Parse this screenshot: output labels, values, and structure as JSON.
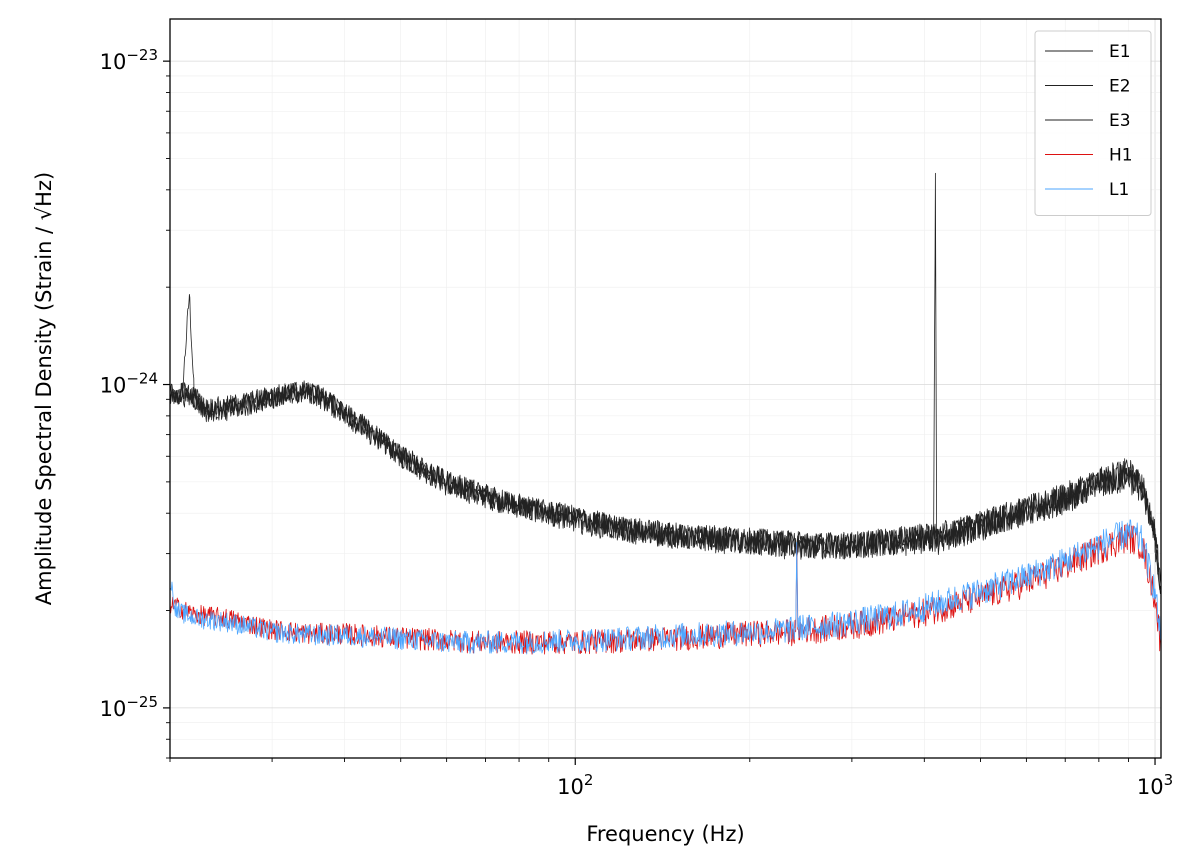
{
  "chart_data": {
    "type": "line",
    "title": "",
    "xlabel": "Frequency (Hz)",
    "ylabel": "Amplitude Spectral Density (Strain / √Hz)",
    "xscale": "log",
    "yscale": "log",
    "xlim": [
      20,
      1024
    ],
    "ylim": [
      7e-26,
      1.35e-23
    ],
    "x_ticks": [
      {
        "value": 100,
        "base": "10",
        "exp": "2"
      },
      {
        "value": 1000,
        "base": "10",
        "exp": "3"
      }
    ],
    "y_ticks": [
      {
        "value": 1e-25,
        "base": "10",
        "exp": "−25"
      },
      {
        "value": 1e-24,
        "base": "10",
        "exp": "−24"
      },
      {
        "value": 1e-23,
        "base": "10",
        "exp": "−23"
      }
    ],
    "grid": true,
    "legend_position": "top-right",
    "series": [
      {
        "name": "E1",
        "color": "#222222",
        "points": [
          [
            20,
            9.3e-25
          ],
          [
            20.6,
            9e-25
          ],
          [
            21,
            9.4e-25
          ],
          [
            21.6,
            1.9e-24
          ],
          [
            22,
            9.5e-25
          ],
          [
            23,
            8.4e-25
          ],
          [
            25,
            8.3e-25
          ],
          [
            28,
            8.8e-25
          ],
          [
            31,
            9.2e-25
          ],
          [
            34,
            9.5e-25
          ],
          [
            36,
            9.3e-25
          ],
          [
            40,
            8.3e-25
          ],
          [
            45,
            7e-25
          ],
          [
            50,
            6e-25
          ],
          [
            60,
            4.9e-25
          ],
          [
            70,
            4.5e-25
          ],
          [
            80,
            4.2e-25
          ],
          [
            100,
            3.85e-25
          ],
          [
            120,
            3.6e-25
          ],
          [
            150,
            3.45e-25
          ],
          [
            180,
            3.35e-25
          ],
          [
            220,
            3.25e-25
          ],
          [
            260,
            3.2e-25
          ],
          [
            300,
            3.2e-25
          ],
          [
            360,
            3.3e-25
          ],
          [
            410,
            3.4e-25
          ],
          [
            415,
            3.45e-25
          ],
          [
            418,
            4.5e-24
          ],
          [
            420,
            3.4e-25
          ],
          [
            422,
            3.3e-25
          ],
          [
            450,
            3.5e-25
          ],
          [
            500,
            3.7e-25
          ],
          [
            600,
            4.1e-25
          ],
          [
            700,
            4.5e-25
          ],
          [
            800,
            5e-25
          ],
          [
            900,
            5.3e-25
          ],
          [
            950,
            4.9e-25
          ],
          [
            1000,
            3.4e-25
          ],
          [
            1024,
            2.3e-25
          ]
        ]
      },
      {
        "name": "E2",
        "color": "#222222",
        "points": [
          [
            20,
            9e-25
          ],
          [
            20.6,
            9.2e-25
          ],
          [
            21,
            9.2e-25
          ],
          [
            22,
            9e-25
          ],
          [
            23,
            8.2e-25
          ],
          [
            25,
            8.4e-25
          ],
          [
            28,
            8.7e-25
          ],
          [
            31,
            9.3e-25
          ],
          [
            34,
            9.6e-25
          ],
          [
            36,
            9.2e-25
          ],
          [
            40,
            8.1e-25
          ],
          [
            45,
            6.9e-25
          ],
          [
            50,
            6.1e-25
          ],
          [
            60,
            5e-25
          ],
          [
            70,
            4.6e-25
          ],
          [
            80,
            4.25e-25
          ],
          [
            100,
            3.8e-25
          ],
          [
            120,
            3.55e-25
          ],
          [
            150,
            3.4e-25
          ],
          [
            180,
            3.3e-25
          ],
          [
            220,
            3.2e-25
          ],
          [
            260,
            3.15e-25
          ],
          [
            300,
            3.18e-25
          ],
          [
            360,
            3.25e-25
          ],
          [
            410,
            3.35e-25
          ],
          [
            420,
            3.35e-25
          ],
          [
            450,
            3.45e-25
          ],
          [
            500,
            3.65e-25
          ],
          [
            600,
            4.05e-25
          ],
          [
            700,
            4.45e-25
          ],
          [
            800,
            4.95e-25
          ],
          [
            900,
            5.2e-25
          ],
          [
            950,
            4.8e-25
          ],
          [
            1000,
            3.3e-25
          ],
          [
            1024,
            2.3e-25
          ]
        ]
      },
      {
        "name": "E3",
        "color": "#222222",
        "points": [
          [
            20,
            9.5e-25
          ],
          [
            20.6,
            9.3e-25
          ],
          [
            21,
            9.6e-25
          ],
          [
            22,
            9.2e-25
          ],
          [
            23,
            8.5e-25
          ],
          [
            25,
            8.6e-25
          ],
          [
            28,
            9e-25
          ],
          [
            31,
            9.4e-25
          ],
          [
            34,
            9.5e-25
          ],
          [
            36,
            9.4e-25
          ],
          [
            40,
            8.2e-25
          ],
          [
            45,
            7.1e-25
          ],
          [
            50,
            6e-25
          ],
          [
            60,
            5e-25
          ],
          [
            70,
            4.55e-25
          ],
          [
            80,
            4.2e-25
          ],
          [
            100,
            3.9e-25
          ],
          [
            120,
            3.6e-25
          ],
          [
            150,
            3.45e-25
          ],
          [
            180,
            3.35e-25
          ],
          [
            220,
            3.25e-25
          ],
          [
            260,
            3.2e-25
          ],
          [
            300,
            3.2e-25
          ],
          [
            360,
            3.3e-25
          ],
          [
            410,
            3.4e-25
          ],
          [
            420,
            3.4e-25
          ],
          [
            450,
            3.5e-25
          ],
          [
            500,
            3.7e-25
          ],
          [
            600,
            4.1e-25
          ],
          [
            700,
            4.5e-25
          ],
          [
            800,
            5e-25
          ],
          [
            900,
            5.4e-25
          ],
          [
            950,
            4.9e-25
          ],
          [
            1000,
            3.4e-25
          ],
          [
            1024,
            2.4e-25
          ]
        ]
      },
      {
        "name": "H1",
        "color": "#dd1111",
        "points": [
          [
            20,
            2.1e-25
          ],
          [
            22,
            1.95e-25
          ],
          [
            25,
            1.9e-25
          ],
          [
            30,
            1.75e-25
          ],
          [
            35,
            1.7e-25
          ],
          [
            40,
            1.7e-25
          ],
          [
            50,
            1.65e-25
          ],
          [
            60,
            1.62e-25
          ],
          [
            70,
            1.6e-25
          ],
          [
            80,
            1.6e-25
          ],
          [
            100,
            1.6e-25
          ],
          [
            120,
            1.62e-25
          ],
          [
            150,
            1.65e-25
          ],
          [
            180,
            1.68e-25
          ],
          [
            200,
            1.7e-25
          ],
          [
            240,
            1.72e-25
          ],
          [
            241,
            3.2e-25
          ],
          [
            242,
            1.75e-25
          ],
          [
            260,
            1.75e-25
          ],
          [
            300,
            1.8e-25
          ],
          [
            360,
            1.9e-25
          ],
          [
            400,
            1.98e-25
          ],
          [
            500,
            2.2e-25
          ],
          [
            600,
            2.45e-25
          ],
          [
            700,
            2.75e-25
          ],
          [
            800,
            3.1e-25
          ],
          [
            900,
            3.4e-25
          ],
          [
            950,
            3.2e-25
          ],
          [
            1000,
            2.2e-25
          ],
          [
            1024,
            1.55e-25
          ]
        ]
      },
      {
        "name": "L1",
        "color": "#4da6ff",
        "points": [
          [
            20,
            2.5e-25
          ],
          [
            20.5,
            2e-25
          ],
          [
            22,
            1.9e-25
          ],
          [
            25,
            1.85e-25
          ],
          [
            30,
            1.72e-25
          ],
          [
            35,
            1.68e-25
          ],
          [
            40,
            1.68e-25
          ],
          [
            50,
            1.64e-25
          ],
          [
            60,
            1.6e-25
          ],
          [
            70,
            1.6e-25
          ],
          [
            80,
            1.6e-25
          ],
          [
            100,
            1.62e-25
          ],
          [
            120,
            1.64e-25
          ],
          [
            150,
            1.68e-25
          ],
          [
            180,
            1.7e-25
          ],
          [
            200,
            1.72e-25
          ],
          [
            240,
            1.75e-25
          ],
          [
            241,
            3.25e-25
          ],
          [
            242,
            1.78e-25
          ],
          [
            260,
            1.78e-25
          ],
          [
            300,
            1.85e-25
          ],
          [
            360,
            1.95e-25
          ],
          [
            400,
            2.05e-25
          ],
          [
            500,
            2.3e-25
          ],
          [
            600,
            2.55e-25
          ],
          [
            700,
            2.85e-25
          ],
          [
            800,
            3.2e-25
          ],
          [
            900,
            3.5e-25
          ],
          [
            950,
            3.3e-25
          ],
          [
            1000,
            2.3e-25
          ],
          [
            1024,
            1.6e-25
          ]
        ]
      }
    ]
  }
}
